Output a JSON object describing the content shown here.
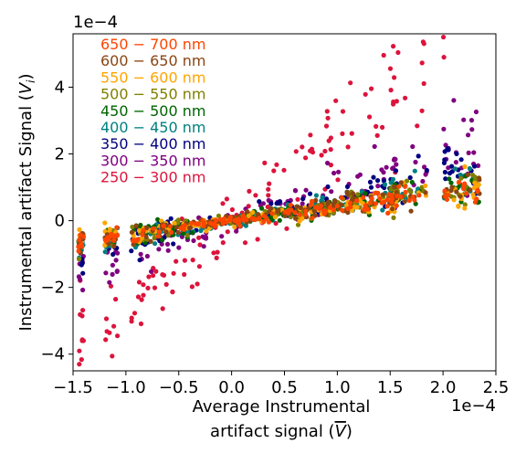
{
  "chart_data": {
    "type": "scatter",
    "title": "",
    "xlabel_line1": "Average Instrumental",
    "xlabel_line2": "artifact signal (",
    "xlabel_symbol": "V",
    "xlabel_close": ")",
    "ylabel_main": "Instrumental artifact Signal (",
    "ylabel_symbol": "V",
    "ylabel_sub": "i",
    "ylabel_close": ")",
    "x_offset_label": "1e−4",
    "y_offset_label": "1e−4",
    "xlim": [
      -1.5,
      2.5
    ],
    "ylim": [
      -4.5,
      5.6
    ],
    "xticks": [
      -1.5,
      -1.0,
      -0.5,
      0.0,
      0.5,
      1.0,
      1.5,
      2.0,
      2.5
    ],
    "xtick_labels": [
      "−1.5",
      "−1.0",
      "−0.5",
      "0.0",
      "0.5",
      "1.0",
      "1.5",
      "2.0",
      "2.5"
    ],
    "yticks": [
      -4,
      -2,
      0,
      2,
      4
    ],
    "ytick_labels": [
      "−4",
      "−2",
      "0",
      "2",
      "4"
    ],
    "grid": false,
    "legend_position": "top-left",
    "series": [
      {
        "name": "650 − 700 nm",
        "color": "#ff4500",
        "slope": 0.42,
        "spread": 0.12,
        "count": 150,
        "seed": 11
      },
      {
        "name": "600 − 650 nm",
        "color": "#8b4513",
        "slope": 0.45,
        "spread": 0.13,
        "count": 150,
        "seed": 12
      },
      {
        "name": "550 − 600 nm",
        "color": "#ffa500",
        "slope": 0.4,
        "spread": 0.13,
        "count": 150,
        "seed": 13
      },
      {
        "name": "500 − 550 nm",
        "color": "#808000",
        "slope": 0.46,
        "spread": 0.14,
        "count": 150,
        "seed": 14
      },
      {
        "name": "450 − 500 nm",
        "color": "#006400",
        "slope": 0.48,
        "spread": 0.14,
        "count": 150,
        "seed": 15
      },
      {
        "name": "400 − 450 nm",
        "color": "#008080",
        "slope": 0.55,
        "spread": 0.16,
        "count": 150,
        "seed": 16
      },
      {
        "name": "350 − 400 nm",
        "color": "#000080",
        "slope": 0.7,
        "spread": 0.2,
        "count": 150,
        "seed": 17
      },
      {
        "name": "300 − 350 nm",
        "color": "#800080",
        "slope": 0.95,
        "spread": 0.35,
        "count": 150,
        "seed": 18
      },
      {
        "name": "250 − 300 nm",
        "color": "#dc143c",
        "slope": 2.7,
        "spread": 0.8,
        "count": 150,
        "seed": 19
      }
    ]
  }
}
